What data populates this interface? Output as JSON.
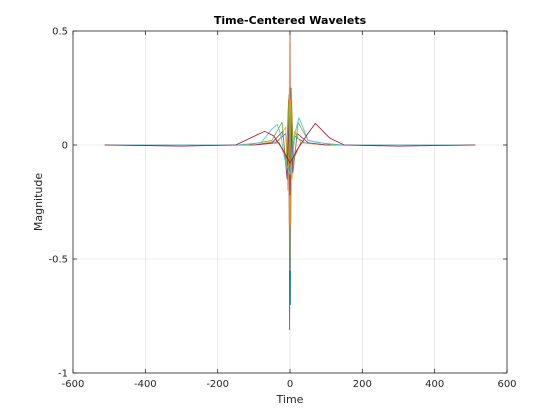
{
  "chart_data": {
    "type": "line",
    "title": "Time-Centered Wavelets",
    "xlabel": "Time",
    "ylabel": "Magnitude",
    "xlim": [
      -600,
      600
    ],
    "ylim": [
      -1,
      0.5
    ],
    "xticks": [
      -600,
      -400,
      -200,
      0,
      200,
      400,
      600
    ],
    "xtick_labels": [
      "-600",
      "-400",
      "-200",
      "0",
      "200",
      "400",
      "600"
    ],
    "yticks": [
      -1,
      -0.5,
      0,
      0.5
    ],
    "ytick_labels": [
      "-1",
      "-0.5",
      "0",
      "0.5"
    ],
    "grid": true,
    "legend": "none",
    "series": [
      {
        "color": "#0072bd",
        "x": [
          -512,
          -100,
          -40,
          -12,
          -6,
          -3,
          -1,
          0,
          1,
          3,
          6,
          12,
          40,
          100,
          512
        ],
        "y": [
          0,
          0,
          0.01,
          0.05,
          -0.08,
          0.22,
          -0.81,
          0.45,
          -0.7,
          0.25,
          -0.1,
          0.04,
          0.01,
          0,
          0
        ]
      },
      {
        "color": "#d95319",
        "x": [
          -512,
          -100,
          -30,
          -10,
          -4,
          -2,
          0,
          2,
          4,
          10,
          30,
          100,
          512
        ],
        "y": [
          0,
          0,
          0.01,
          -0.06,
          0.2,
          -0.35,
          0.5,
          -0.35,
          0.2,
          -0.06,
          0.01,
          0,
          0
        ]
      },
      {
        "color": "#edb120",
        "x": [
          -512,
          -100,
          -30,
          -12,
          -6,
          -2,
          0,
          2,
          6,
          12,
          30,
          100,
          512
        ],
        "y": [
          0,
          0,
          0.02,
          0.08,
          -0.2,
          0.25,
          -0.55,
          0.2,
          -0.15,
          0.06,
          0.01,
          0,
          0
        ]
      },
      {
        "color": "#7e2f8e",
        "x": [
          -512,
          -100,
          -50,
          -20,
          -8,
          -3,
          0,
          3,
          8,
          20,
          50,
          100,
          512
        ],
        "y": [
          0,
          0,
          0.01,
          0.06,
          -0.15,
          0.12,
          -0.22,
          0.1,
          -0.12,
          0.05,
          0.01,
          0,
          0
        ]
      },
      {
        "color": "#77ac30",
        "x": [
          -512,
          -120,
          -50,
          -22,
          -10,
          -4,
          0,
          4,
          10,
          22,
          50,
          120,
          512
        ],
        "y": [
          0,
          0,
          0.02,
          0.1,
          -0.1,
          0.18,
          -0.12,
          0.18,
          -0.1,
          0.1,
          0.02,
          0,
          0
        ]
      },
      {
        "color": "#4dbeee",
        "x": [
          -512,
          -150,
          -80,
          -50,
          -35,
          -25,
          -15,
          0,
          15,
          25,
          35,
          50,
          80,
          150,
          512
        ],
        "y": [
          0,
          0,
          0.01,
          0.07,
          0.09,
          0.04,
          -0.06,
          -0.13,
          0.06,
          0.12,
          0.08,
          0.02,
          0.01,
          0,
          0
        ]
      },
      {
        "color": "#a2142f",
        "x": [
          -512,
          -300,
          -150,
          -110,
          -70,
          -45,
          -20,
          0,
          20,
          45,
          70,
          110,
          150,
          300,
          512
        ],
        "y": [
          0,
          -0.005,
          0,
          0.03,
          0.06,
          0.04,
          -0.02,
          -0.08,
          -0.02,
          0.04,
          0.095,
          0.03,
          0,
          -0.005,
          0
        ]
      }
    ]
  }
}
